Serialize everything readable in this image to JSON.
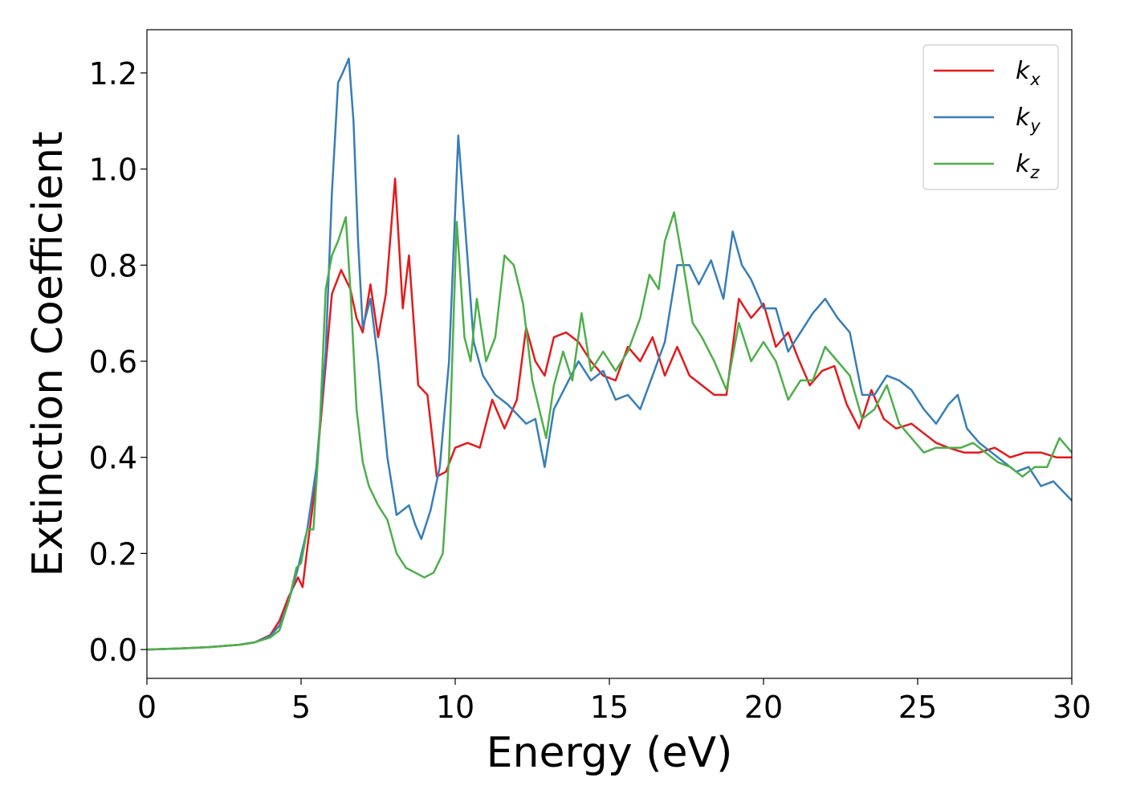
{
  "chart_data": {
    "type": "line",
    "title": "",
    "xlabel": "Energy (eV)",
    "ylabel": "Extinction Coefficient",
    "xlim": [
      0,
      30
    ],
    "ylim": [
      -0.06,
      1.29
    ],
    "xticks": [
      0,
      5,
      10,
      15,
      20,
      25,
      30
    ],
    "yticks": [
      0.0,
      0.2,
      0.4,
      0.6,
      0.8,
      1.0,
      1.2
    ],
    "xtick_labels": [
      "0",
      "5",
      "10",
      "15",
      "20",
      "25",
      "30"
    ],
    "ytick_labels": [
      "0.0",
      "0.2",
      "0.4",
      "0.6",
      "0.8",
      "1.0",
      "1.2"
    ],
    "grid": false,
    "legend_position": "top-right",
    "series": [
      {
        "name": "k_x",
        "label_main": "k",
        "label_sub": "x",
        "color": "#e41a1c",
        "x": [
          0,
          1,
          2,
          3,
          3.5,
          4.0,
          4.3,
          4.6,
          4.9,
          5.05,
          5.2,
          5.4,
          5.7,
          6.0,
          6.3,
          6.6,
          6.8,
          7.0,
          7.25,
          7.5,
          7.75,
          8.05,
          8.3,
          8.5,
          8.8,
          9.1,
          9.4,
          9.7,
          10.0,
          10.4,
          10.8,
          11.2,
          11.6,
          12.0,
          12.3,
          12.6,
          12.9,
          13.2,
          13.6,
          14.0,
          14.4,
          14.8,
          15.2,
          15.6,
          16.0,
          16.4,
          16.8,
          17.2,
          17.6,
          18.0,
          18.4,
          18.8,
          19.2,
          19.6,
          20.0,
          20.4,
          20.8,
          21.1,
          21.5,
          21.9,
          22.3,
          22.7,
          23.1,
          23.5,
          23.9,
          24.3,
          24.8,
          25.2,
          25.6,
          26.0,
          26.5,
          27.0,
          27.5,
          28.0,
          28.5,
          29.0,
          29.5,
          30.0
        ],
        "y": [
          0.0,
          0.002,
          0.005,
          0.01,
          0.015,
          0.03,
          0.06,
          0.11,
          0.15,
          0.13,
          0.21,
          0.31,
          0.52,
          0.74,
          0.79,
          0.75,
          0.69,
          0.66,
          0.76,
          0.65,
          0.74,
          0.98,
          0.71,
          0.82,
          0.55,
          0.53,
          0.36,
          0.37,
          0.42,
          0.43,
          0.42,
          0.52,
          0.46,
          0.52,
          0.67,
          0.6,
          0.57,
          0.65,
          0.66,
          0.64,
          0.6,
          0.57,
          0.56,
          0.63,
          0.6,
          0.65,
          0.57,
          0.63,
          0.57,
          0.55,
          0.53,
          0.53,
          0.73,
          0.69,
          0.72,
          0.63,
          0.66,
          0.61,
          0.55,
          0.58,
          0.59,
          0.51,
          0.46,
          0.54,
          0.48,
          0.46,
          0.47,
          0.45,
          0.43,
          0.42,
          0.41,
          0.41,
          0.42,
          0.4,
          0.41,
          0.41,
          0.4,
          0.4
        ]
      },
      {
        "name": "k_y",
        "label_main": "k",
        "label_sub": "y",
        "color": "#377eb8",
        "x": [
          0,
          1,
          2,
          3,
          3.5,
          4.0,
          4.3,
          4.6,
          4.9,
          5.2,
          5.5,
          5.8,
          6.0,
          6.2,
          6.35,
          6.55,
          6.7,
          6.85,
          7.0,
          7.25,
          7.5,
          7.8,
          8.1,
          8.3,
          8.5,
          8.7,
          8.9,
          9.2,
          9.5,
          9.8,
          10.1,
          10.3,
          10.6,
          10.9,
          11.3,
          11.7,
          12.0,
          12.3,
          12.6,
          12.9,
          13.2,
          13.6,
          14.0,
          14.4,
          14.8,
          15.2,
          15.6,
          16.0,
          16.4,
          16.8,
          17.2,
          17.6,
          17.9,
          18.3,
          18.7,
          19.0,
          19.3,
          19.6,
          20.0,
          20.4,
          20.8,
          21.2,
          21.6,
          22.0,
          22.4,
          22.8,
          23.2,
          23.6,
          24.0,
          24.4,
          24.8,
          25.2,
          25.6,
          26.0,
          26.3,
          26.6,
          27.0,
          27.4,
          27.8,
          28.2,
          28.6,
          29.0,
          29.4,
          29.7,
          30.0
        ],
        "y": [
          0.0,
          0.002,
          0.005,
          0.01,
          0.015,
          0.028,
          0.05,
          0.1,
          0.17,
          0.25,
          0.38,
          0.62,
          0.95,
          1.18,
          1.2,
          1.23,
          1.1,
          0.85,
          0.67,
          0.73,
          0.6,
          0.4,
          0.28,
          0.29,
          0.3,
          0.26,
          0.23,
          0.29,
          0.38,
          0.6,
          1.07,
          0.9,
          0.64,
          0.57,
          0.53,
          0.51,
          0.49,
          0.47,
          0.48,
          0.38,
          0.5,
          0.55,
          0.6,
          0.56,
          0.58,
          0.52,
          0.53,
          0.5,
          0.57,
          0.64,
          0.8,
          0.8,
          0.76,
          0.81,
          0.73,
          0.87,
          0.8,
          0.77,
          0.71,
          0.71,
          0.62,
          0.66,
          0.7,
          0.73,
          0.69,
          0.66,
          0.53,
          0.53,
          0.57,
          0.56,
          0.54,
          0.5,
          0.47,
          0.51,
          0.53,
          0.46,
          0.43,
          0.41,
          0.39,
          0.37,
          0.38,
          0.34,
          0.35,
          0.33,
          0.31
        ]
      },
      {
        "name": "k_z",
        "label_main": "k",
        "label_sub": "z",
        "color": "#4daf4a",
        "x": [
          0,
          1,
          2,
          3,
          3.5,
          4.0,
          4.3,
          4.6,
          4.85,
          5.0,
          5.2,
          5.4,
          5.6,
          5.8,
          6.0,
          6.2,
          6.45,
          6.6,
          6.8,
          7.0,
          7.2,
          7.5,
          7.8,
          8.1,
          8.4,
          8.7,
          9.0,
          9.3,
          9.6,
          9.8,
          10.05,
          10.3,
          10.5,
          10.7,
          11.0,
          11.3,
          11.6,
          11.9,
          12.2,
          12.5,
          12.95,
          13.2,
          13.5,
          13.8,
          14.1,
          14.4,
          14.8,
          15.2,
          15.6,
          16.0,
          16.3,
          16.6,
          16.8,
          17.1,
          17.4,
          17.7,
          18.0,
          18.4,
          18.8,
          19.2,
          19.6,
          20.0,
          20.4,
          20.8,
          21.2,
          21.6,
          22.0,
          22.4,
          22.8,
          23.2,
          23.6,
          24.0,
          24.4,
          24.8,
          25.2,
          25.6,
          26.0,
          26.4,
          26.8,
          27.2,
          27.6,
          28.0,
          28.4,
          28.8,
          29.2,
          29.6,
          30.0
        ],
        "y": [
          0.0,
          0.002,
          0.005,
          0.01,
          0.015,
          0.025,
          0.04,
          0.1,
          0.17,
          0.18,
          0.25,
          0.25,
          0.45,
          0.75,
          0.82,
          0.85,
          0.9,
          0.75,
          0.5,
          0.39,
          0.34,
          0.3,
          0.27,
          0.2,
          0.17,
          0.16,
          0.15,
          0.16,
          0.2,
          0.4,
          0.89,
          0.65,
          0.6,
          0.73,
          0.6,
          0.65,
          0.82,
          0.8,
          0.72,
          0.56,
          0.44,
          0.55,
          0.62,
          0.56,
          0.7,
          0.58,
          0.62,
          0.58,
          0.62,
          0.69,
          0.78,
          0.75,
          0.85,
          0.91,
          0.8,
          0.68,
          0.65,
          0.6,
          0.54,
          0.68,
          0.6,
          0.64,
          0.6,
          0.52,
          0.56,
          0.56,
          0.63,
          0.6,
          0.57,
          0.48,
          0.5,
          0.55,
          0.47,
          0.44,
          0.41,
          0.42,
          0.42,
          0.42,
          0.43,
          0.41,
          0.39,
          0.38,
          0.36,
          0.38,
          0.38,
          0.44,
          0.41
        ]
      }
    ]
  }
}
